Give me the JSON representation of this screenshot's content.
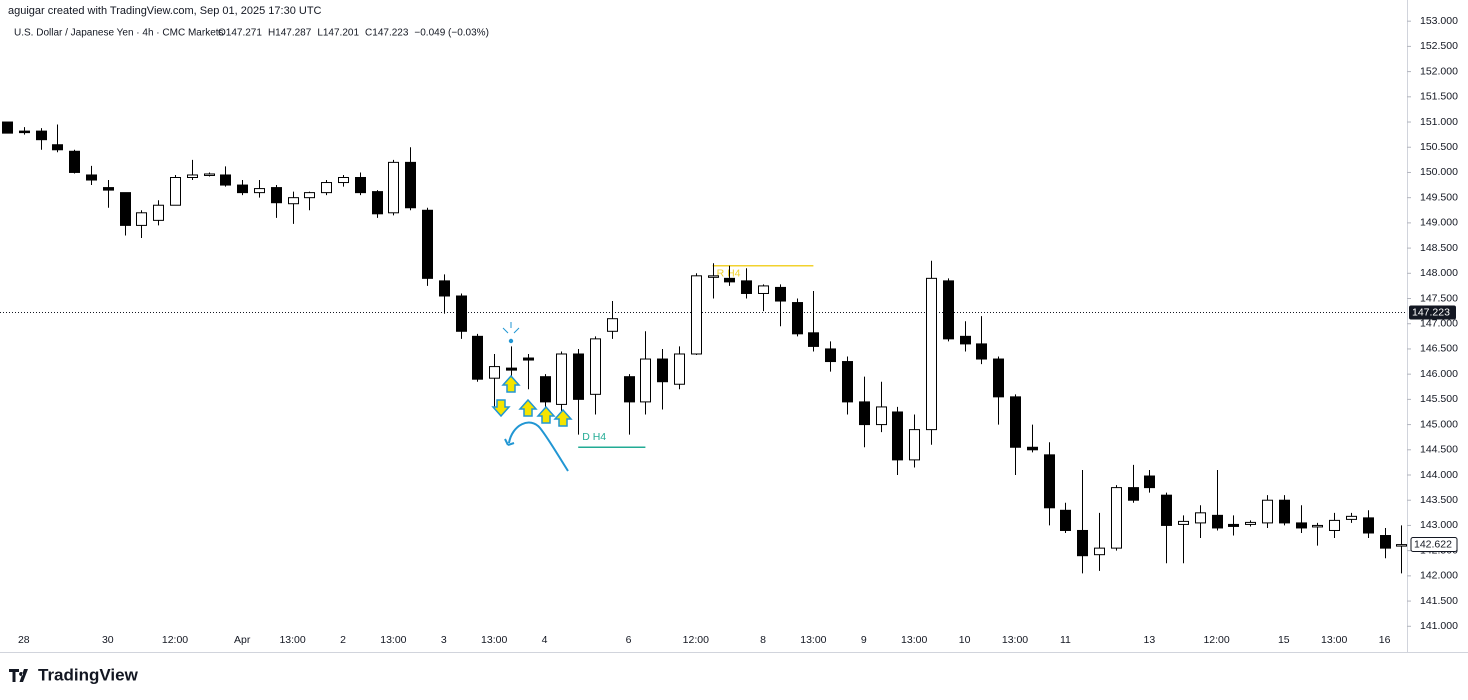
{
  "chart_data": {
    "type": "candlestick",
    "title": "aguigar created with TradingView.com, Sep 01, 2025 17:30 UTC",
    "symbol": "U.S. Dollar / Japanese Yen · 4h · CMC Markets",
    "ohlc_texts": [
      "O147.271",
      "H147.287",
      "L147.201",
      "C147.223",
      "−0.049 (−0.03%)"
    ],
    "brand": "TradingView",
    "categories": [
      null,
      "28",
      null,
      null,
      null,
      null,
      "30",
      null,
      null,
      null,
      "12:00",
      null,
      null,
      null,
      "Apr",
      null,
      null,
      "13:00",
      null,
      null,
      "2",
      null,
      null,
      "13:00",
      null,
      null,
      "3",
      null,
      null,
      "13:00",
      null,
      null,
      "4",
      null,
      null,
      null,
      null,
      "6",
      null,
      null,
      null,
      "12:00",
      null,
      null,
      null,
      "8",
      null,
      null,
      "13:00",
      null,
      null,
      "9",
      null,
      null,
      "13:00",
      null,
      null,
      "10",
      null,
      null,
      "13:00",
      null,
      null,
      "11",
      null,
      null,
      null,
      null,
      "13",
      null,
      null,
      null,
      "12:00",
      null,
      null,
      null,
      "15",
      null,
      null,
      "13:00",
      null,
      null,
      "16",
      null
    ],
    "open": [
      151.0,
      150.82,
      150.82,
      150.55,
      150.42,
      149.95,
      149.7,
      149.6,
      148.95,
      149.05,
      149.35,
      149.9,
      149.95,
      149.95,
      149.75,
      149.6,
      149.7,
      149.38,
      149.5,
      149.6,
      149.8,
      149.9,
      149.62,
      149.2,
      150.2,
      149.25,
      147.85,
      147.55,
      146.75,
      145.92,
      146.12,
      146.32,
      145.95,
      145.4,
      146.4,
      145.6,
      146.85,
      145.95,
      145.45,
      146.3,
      145.8,
      146.4,
      147.95,
      147.9,
      147.85,
      147.6,
      147.72,
      147.42,
      146.82,
      146.5,
      146.25,
      145.45,
      145.0,
      145.25,
      144.3,
      144.9,
      147.85,
      146.75,
      146.6,
      146.3,
      145.55,
      144.55,
      144.4,
      143.3,
      142.9,
      142.42,
      142.55,
      143.75,
      143.98,
      143.6,
      143.02,
      143.05,
      143.2,
      143.02,
      143.02,
      143.05,
      143.5,
      143.05,
      142.98,
      142.9,
      143.12,
      143.15,
      142.8,
      142.6
    ],
    "high": [
      151.0,
      150.9,
      150.88,
      150.95,
      150.45,
      150.13,
      149.85,
      149.6,
      149.25,
      149.45,
      149.95,
      150.25,
      150.0,
      150.12,
      149.85,
      149.85,
      149.75,
      149.62,
      149.62,
      149.85,
      149.95,
      150.0,
      149.65,
      150.25,
      150.5,
      149.3,
      147.98,
      147.6,
      146.8,
      146.4,
      146.55,
      146.4,
      146.0,
      146.45,
      146.5,
      146.75,
      147.45,
      146.0,
      146.85,
      146.5,
      146.55,
      148.0,
      148.2,
      148.15,
      148.1,
      147.78,
      147.78,
      147.5,
      147.65,
      146.65,
      146.35,
      145.95,
      145.85,
      145.35,
      145.2,
      148.25,
      147.9,
      147.05,
      147.15,
      146.35,
      145.6,
      145.0,
      144.65,
      143.45,
      144.1,
      143.25,
      143.8,
      144.2,
      144.1,
      143.65,
      143.2,
      143.4,
      144.1,
      143.2,
      143.1,
      143.6,
      143.6,
      143.4,
      143.05,
      143.25,
      143.25,
      143.3,
      142.95,
      143.0
    ],
    "low": [
      150.78,
      150.75,
      150.45,
      150.4,
      149.98,
      149.75,
      149.3,
      148.75,
      148.7,
      148.95,
      149.35,
      149.85,
      149.92,
      149.72,
      149.55,
      149.5,
      149.1,
      148.98,
      149.25,
      149.55,
      149.72,
      149.55,
      149.1,
      149.15,
      149.25,
      147.75,
      147.2,
      146.7,
      145.85,
      145.35,
      145.9,
      145.7,
      145.25,
      145.2,
      144.8,
      145.2,
      146.7,
      144.8,
      145.2,
      145.3,
      145.7,
      146.38,
      147.5,
      147.75,
      147.5,
      147.25,
      146.95,
      146.75,
      146.45,
      146.05,
      145.2,
      144.55,
      144.85,
      144.0,
      144.15,
      144.6,
      146.65,
      146.45,
      146.2,
      145.0,
      144.0,
      144.45,
      143.0,
      142.85,
      142.05,
      142.1,
      142.5,
      143.45,
      143.65,
      142.25,
      142.25,
      142.75,
      142.9,
      142.8,
      142.98,
      142.95,
      143.0,
      142.85,
      142.6,
      142.75,
      143.05,
      142.75,
      142.35,
      142.05
    ],
    "close": [
      150.78,
      150.8,
      150.65,
      150.45,
      150.0,
      149.85,
      149.65,
      148.95,
      149.2,
      149.35,
      149.9,
      149.95,
      149.97,
      149.75,
      149.6,
      149.68,
      149.4,
      149.5,
      149.6,
      149.8,
      149.9,
      149.6,
      149.18,
      150.2,
      149.3,
      147.9,
      147.55,
      146.85,
      145.9,
      146.15,
      146.08,
      146.28,
      145.45,
      146.4,
      145.5,
      146.7,
      147.1,
      145.45,
      146.3,
      145.85,
      146.4,
      147.95,
      147.95,
      147.83,
      147.6,
      147.75,
      147.45,
      146.8,
      146.55,
      146.25,
      145.45,
      145.0,
      145.35,
      144.3,
      144.9,
      147.9,
      146.7,
      146.6,
      146.3,
      145.55,
      144.55,
      144.5,
      143.35,
      142.9,
      142.4,
      142.55,
      143.75,
      143.5,
      143.75,
      143.0,
      143.08,
      143.25,
      142.95,
      142.98,
      143.06,
      143.5,
      143.05,
      142.95,
      143.0,
      143.1,
      143.18,
      142.85,
      142.55,
      142.62
    ],
    "up_color": "#ffffff",
    "down_color": "#000000",
    "wick_color": "#000000",
    "ylim": [
      140.49,
      153.42
    ],
    "yticks": [
      {
        "value": 141,
        "label": "141.000"
      },
      {
        "value": 141.5,
        "label": "141.500"
      },
      {
        "value": 142,
        "label": "142.000"
      },
      {
        "value": 142.5,
        "label": "142.500"
      },
      {
        "value": 143,
        "label": "143.000"
      },
      {
        "value": 143.5,
        "label": "143.500"
      },
      {
        "value": 144,
        "label": "144.000"
      },
      {
        "value": 144.5,
        "label": "144.500"
      },
      {
        "value": 145,
        "label": "145.000"
      },
      {
        "value": 145.5,
        "label": "145.500"
      },
      {
        "value": 146,
        "label": "146.000"
      },
      {
        "value": 146.5,
        "label": "146.500"
      },
      {
        "value": 147,
        "label": "147.000"
      },
      {
        "value": 147.5,
        "label": "147.500"
      },
      {
        "value": 148,
        "label": "148.000"
      },
      {
        "value": 148.5,
        "label": "148.500"
      },
      {
        "value": 149,
        "label": "149.000"
      },
      {
        "value": 149.5,
        "label": "149.500"
      },
      {
        "value": 150,
        "label": "150.000"
      },
      {
        "value": 150.5,
        "label": "150.500"
      },
      {
        "value": 151,
        "label": "151.000"
      },
      {
        "value": 151.5,
        "label": "151.500"
      },
      {
        "value": 152,
        "label": "152.000"
      },
      {
        "value": 152.5,
        "label": "152.500"
      },
      {
        "value": 153,
        "label": "153.000"
      }
    ],
    "last_price": {
      "value": 147.223,
      "label": "147.223"
    },
    "close_price": {
      "value": 142.622,
      "label": "142.622"
    },
    "levels": [
      {
        "label": "R H4",
        "value": 148.15,
        "from": 42,
        "to": 48,
        "color": "#f2d22e"
      },
      {
        "label": "D H4",
        "value": 144.55,
        "from": 34,
        "to": 38,
        "color": "#22ab94"
      }
    ]
  }
}
